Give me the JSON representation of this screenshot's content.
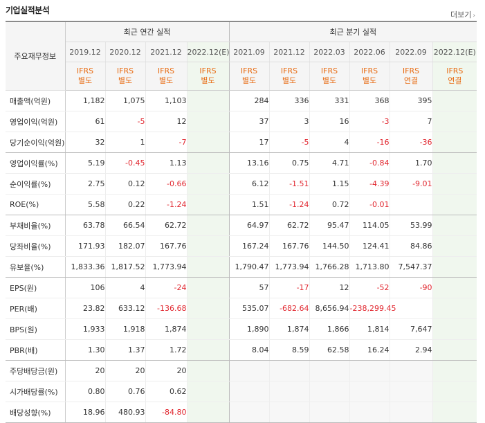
{
  "header": {
    "title": "기업실적분석",
    "more_label": "더보기",
    "more_icon": "chevron-right-icon"
  },
  "table": {
    "label_header": "주요재무정보",
    "groups": {
      "annual": "최근 연간 실적",
      "quarterly": "최근 분기 실적"
    },
    "periods": [
      "2019.12",
      "2020.12",
      "2021.12",
      "2022.12(E)",
      "2021.09",
      "2021.12",
      "2022.03",
      "2022.06",
      "2022.09",
      "2022.12(E)"
    ],
    "accounting": [
      [
        "IFRS",
        "별도"
      ],
      [
        "IFRS",
        "별도"
      ],
      [
        "IFRS",
        "별도"
      ],
      [
        "IFRS",
        "별도"
      ],
      [
        "IFRS",
        "별도"
      ],
      [
        "IFRS",
        "별도"
      ],
      [
        "IFRS",
        "별도"
      ],
      [
        "IFRS",
        "별도"
      ],
      [
        "IFRS",
        "연결"
      ],
      [
        "IFRS",
        "연결"
      ]
    ],
    "rows": [
      {
        "label": "매출액(억원)",
        "values": [
          "1,182",
          "1,075",
          "1,103",
          "",
          "284",
          "336",
          "331",
          "368",
          "395",
          ""
        ]
      },
      {
        "label": "영업이익(억원)",
        "values": [
          "61",
          "-5",
          "12",
          "",
          "37",
          "3",
          "16",
          "-3",
          "7",
          ""
        ]
      },
      {
        "label": "당기순이익(억원)",
        "values": [
          "32",
          "1",
          "-7",
          "",
          "17",
          "-5",
          "4",
          "-16",
          "-36",
          ""
        ]
      },
      {
        "label": "영업이익률(%)",
        "values": [
          "5.19",
          "-0.45",
          "1.13",
          "",
          "13.16",
          "0.75",
          "4.71",
          "-0.84",
          "1.70",
          ""
        ]
      },
      {
        "label": "순이익률(%)",
        "values": [
          "2.75",
          "0.12",
          "-0.66",
          "",
          "6.12",
          "-1.51",
          "1.15",
          "-4.39",
          "-9.01",
          ""
        ]
      },
      {
        "label": "ROE(%)",
        "values": [
          "5.58",
          "0.22",
          "-1.24",
          "",
          "1.51",
          "-1.24",
          "0.72",
          "-0.01",
          "",
          ""
        ]
      },
      {
        "label": "부채비율(%)",
        "values": [
          "63.78",
          "66.54",
          "62.72",
          "",
          "64.97",
          "62.72",
          "95.47",
          "114.05",
          "53.99",
          ""
        ]
      },
      {
        "label": "당좌비율(%)",
        "values": [
          "171.93",
          "182.07",
          "167.76",
          "",
          "167.24",
          "167.76",
          "144.50",
          "124.41",
          "84.86",
          ""
        ]
      },
      {
        "label": "유보율(%)",
        "values": [
          "1,833.36",
          "1,817.52",
          "1,773.94",
          "",
          "1,790.47",
          "1,773.94",
          "1,766.28",
          "1,713.80",
          "7,547.37",
          ""
        ]
      },
      {
        "label": "EPS(원)",
        "values": [
          "106",
          "4",
          "-24",
          "",
          "57",
          "-17",
          "12",
          "-52",
          "-90",
          ""
        ]
      },
      {
        "label": "PER(배)",
        "values": [
          "23.82",
          "633.12",
          "-136.68",
          "",
          "535.07",
          "-682.64",
          "8,656.94",
          "-238,299.45",
          "",
          ""
        ]
      },
      {
        "label": "BPS(원)",
        "values": [
          "1,933",
          "1,918",
          "1,874",
          "",
          "1,890",
          "1,874",
          "1,866",
          "1,814",
          "7,647",
          ""
        ]
      },
      {
        "label": "PBR(배)",
        "values": [
          "1.30",
          "1.37",
          "1.72",
          "",
          "8.04",
          "8.59",
          "62.58",
          "16.24",
          "2.94",
          ""
        ]
      },
      {
        "label": "주당배당금(원)",
        "values": [
          "20",
          "20",
          "20",
          "",
          "",
          "",
          "",
          "",
          "",
          ""
        ]
      },
      {
        "label": "시가배당률(%)",
        "values": [
          "0.80",
          "0.76",
          "0.62",
          "",
          "",
          "",
          "",
          "",
          "",
          ""
        ]
      },
      {
        "label": "배당성향(%)",
        "values": [
          "18.96",
          "480.93",
          "-84.80",
          "",
          "",
          "",
          "",
          "",
          "",
          ""
        ]
      }
    ]
  },
  "colors": {
    "negative": "#e1262e",
    "ifrs": "#e86b12",
    "estimate_bg": "#f0f7ee"
  }
}
